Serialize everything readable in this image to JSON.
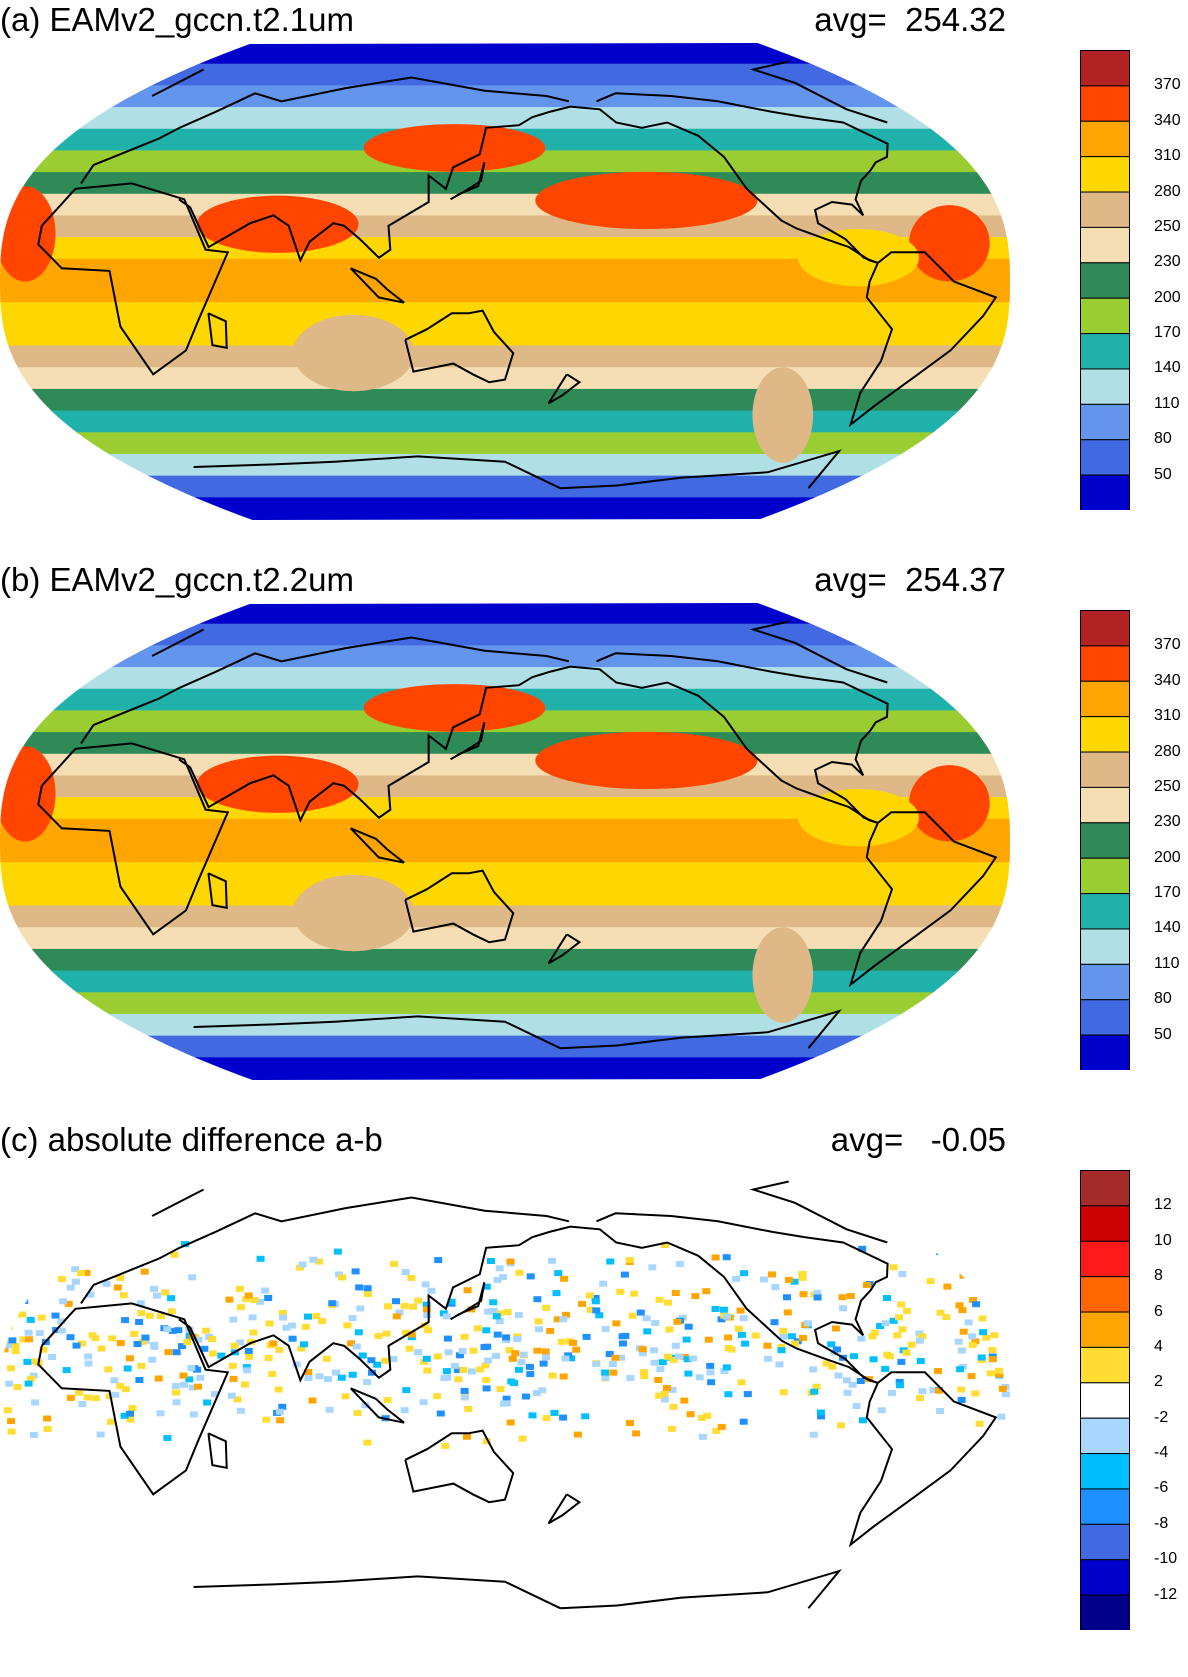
{
  "panels": [
    {
      "title": "(a) EAMv2_gccn.t2.1um",
      "avg_label": "avg=  254.32",
      "scale": "gccn"
    },
    {
      "title": "(b) EAMv2_gccn.t2.2um",
      "avg_label": "avg=  254.37",
      "scale": "gccn"
    },
    {
      "title": "(c) absolute difference a-b",
      "avg_label": "avg=   -0.05",
      "scale": "diff"
    }
  ],
  "colorbars": {
    "gccn": {
      "labels": [
        "370",
        "340",
        "310",
        "280",
        "250",
        "230",
        "200",
        "170",
        "140",
        "110",
        "80",
        "50"
      ],
      "colors": [
        "#b22222",
        "#ff4500",
        "#ffa500",
        "#ffd700",
        "#deb887",
        "#f5deb3",
        "#2e8b57",
        "#9acd32",
        "#20b2aa",
        "#b0e0e6",
        "#6495ed",
        "#4169e1",
        "#0000cd"
      ]
    },
    "diff": {
      "labels": [
        "12",
        "10",
        "8",
        "6",
        "4",
        "2",
        "-2",
        "-4",
        "-6",
        "-8",
        "-10",
        "-12"
      ],
      "colors": [
        "#a52a2a",
        "#cc0000",
        "#ff1a1a",
        "#ff6600",
        "#ffa500",
        "#ffdd33",
        "#ffffff",
        "#a9d6ff",
        "#00bfff",
        "#1e90ff",
        "#4169e1",
        "#0000cd",
        "#00008b"
      ]
    }
  }
}
